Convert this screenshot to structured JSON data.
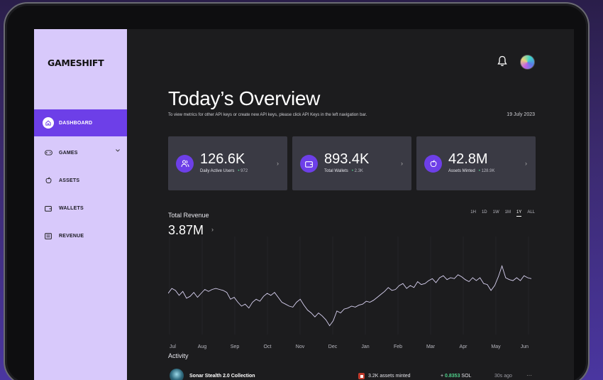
{
  "brand": {
    "logo_text": "GAMESHIFT"
  },
  "sidebar": {
    "items": [
      {
        "label": "DASHBOARD",
        "icon": "home-icon",
        "active": true
      },
      {
        "label": "GAMES",
        "icon": "gamepad-icon",
        "has_chevron": true
      },
      {
        "label": "ASSETS",
        "icon": "apple-icon"
      },
      {
        "label": "WALLETS",
        "icon": "wallet-icon"
      },
      {
        "label": "REVENUE",
        "icon": "revenue-icon"
      }
    ]
  },
  "header": {
    "notification_icon": "bell-icon",
    "avatar_icon": "avatar-icon"
  },
  "overview": {
    "title": "Today’s Overview",
    "subtitle": "To view metrics for other API keys or create new API keys, please click API Keys in the left navigation bar.",
    "date": "19 July 2023"
  },
  "cards": [
    {
      "value": "126.6K",
      "label": "Daily Active Users",
      "delta": "972",
      "icon": "users-icon"
    },
    {
      "value": "893.4K",
      "label": "Total Wallets",
      "delta": "2.3K",
      "icon": "wallet-icon"
    },
    {
      "value": "42.8M",
      "label": "Assets Minted",
      "delta": "128.9K",
      "icon": "apple-icon"
    }
  ],
  "revenue": {
    "label": "Total Revenue",
    "value": "3.87M",
    "ranges": [
      "1H",
      "1D",
      "1W",
      "1M",
      "1Y",
      "ALL"
    ],
    "selected_range": "1Y"
  },
  "chart_data": {
    "type": "line",
    "x_ticks": [
      "Jul",
      "Aug",
      "Sep",
      "Oct",
      "Nov",
      "Dec",
      "Jan",
      "Feb",
      "Mar",
      "Apr",
      "May",
      "Jun"
    ],
    "series": [
      {
        "values": [
          0.42,
          0.47,
          0.45,
          0.4,
          0.44,
          0.37,
          0.39,
          0.43,
          0.38,
          0.42,
          0.46,
          0.44,
          0.46,
          0.47,
          0.46,
          0.45,
          0.43,
          0.36,
          0.38,
          0.33,
          0.29,
          0.31,
          0.27,
          0.33,
          0.36,
          0.34,
          0.39,
          0.42,
          0.4,
          0.43,
          0.38,
          0.33,
          0.31,
          0.29,
          0.28,
          0.33,
          0.36,
          0.3,
          0.25,
          0.22,
          0.18,
          0.22,
          0.19,
          0.15,
          0.09,
          0.14,
          0.24,
          0.22,
          0.26,
          0.27,
          0.29,
          0.28,
          0.3,
          0.31,
          0.34,
          0.33,
          0.35,
          0.38,
          0.41,
          0.44,
          0.48,
          0.45,
          0.46,
          0.5,
          0.52,
          0.47,
          0.5,
          0.48,
          0.54,
          0.51,
          0.52,
          0.55,
          0.57,
          0.53,
          0.58,
          0.6,
          0.56,
          0.58,
          0.57,
          0.61,
          0.59,
          0.56,
          0.54,
          0.58,
          0.55,
          0.58,
          0.52,
          0.51,
          0.45,
          0.5,
          0.59,
          0.7,
          0.58,
          0.56,
          0.55,
          0.58,
          0.55,
          0.6,
          0.58,
          0.57
        ]
      }
    ],
    "grid": true
  },
  "activity": {
    "label": "Activity",
    "rows": [
      {
        "name": "Sonar Stealth 2.0 Collection",
        "minted": "3.2K assets minted",
        "sol_prefix": "+",
        "sol_value": "0.8353",
        "sol_unit": "SOL",
        "time": "30s ago",
        "more": "···"
      }
    ]
  }
}
